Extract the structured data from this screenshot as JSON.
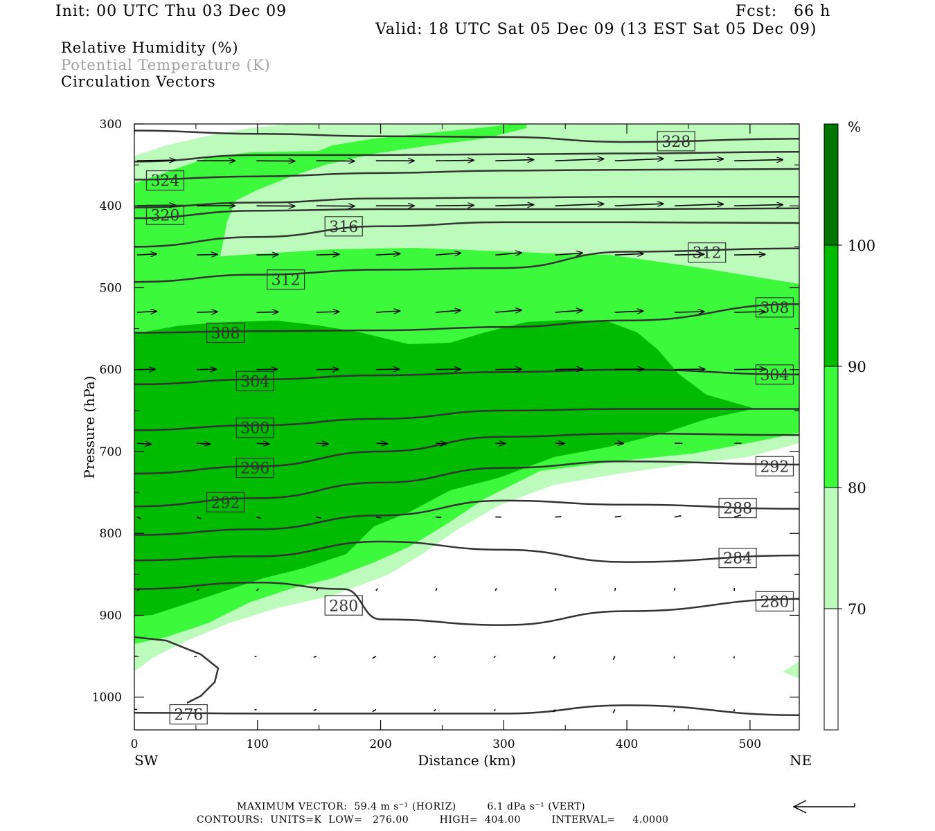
{
  "header": {
    "init": "Init: 00 UTC Thu 03 Dec 09",
    "fcst": "Fcst:   66 h",
    "valid": "Valid: 18 UTC Sat 05 Dec 09 (13 EST Sat 05 Dec 09)"
  },
  "legend": {
    "rh": "Relative Humidity (%)",
    "theta": "Potential Temperature (K)",
    "vectors": "Circulation Vectors"
  },
  "colors": {
    "rh70": "#bdfbbd",
    "rh80": "#3cf93c",
    "rh90": "#00bb00",
    "rh100": "#007500",
    "theta_line": "#333333",
    "theta_legend_text": "#a0a0a0"
  },
  "chart_data": {
    "type": "heatmap",
    "xlabel": "Distance (km)",
    "ylabel": "Pressure (hPa)",
    "xlim": [
      0,
      540
    ],
    "ylim": [
      1040,
      300
    ],
    "x_ticks": [
      "0",
      "100",
      "200",
      "300",
      "400",
      "500"
    ],
    "y_ticks": [
      "300",
      "400",
      "500",
      "600",
      "700",
      "800",
      "900",
      "1000"
    ],
    "x_start_label": "SW",
    "x_end_label": "NE",
    "colorbar": {
      "unit": "%",
      "levels": [
        "70",
        "80",
        "90",
        "100"
      ]
    },
    "theta_contours": [
      {
        "label": "328",
        "points": [
          [
            0,
            308
          ],
          [
            100,
            312
          ],
          [
            200,
            315
          ],
          [
            300,
            316
          ],
          [
            400,
            322
          ],
          [
            540,
            318
          ]
        ]
      },
      {
        "label": "324",
        "points": [
          [
            0,
            346
          ],
          [
            100,
            338
          ],
          [
            200,
            338
          ],
          [
            300,
            337
          ],
          [
            400,
            336
          ],
          [
            540,
            334
          ]
        ]
      },
      {
        "label": "324",
        "points": [
          [
            0,
            368
          ],
          [
            100,
            364
          ],
          [
            200,
            360
          ],
          [
            300,
            357
          ],
          [
            400,
            356
          ],
          [
            540,
            355
          ]
        ]
      },
      {
        "label": "320",
        "points": [
          [
            0,
            402
          ],
          [
            100,
            396
          ],
          [
            200,
            391
          ],
          [
            300,
            390
          ],
          [
            400,
            389
          ],
          [
            540,
            389
          ]
        ]
      },
      {
        "label": "320",
        "points": [
          [
            0,
            415
          ],
          [
            100,
            406
          ],
          [
            200,
            404
          ],
          [
            300,
            404
          ],
          [
            400,
            404
          ],
          [
            540,
            403
          ]
        ]
      },
      {
        "label": "316",
        "points": [
          [
            0,
            450
          ],
          [
            100,
            438
          ],
          [
            200,
            425
          ],
          [
            300,
            420
          ],
          [
            400,
            420
          ],
          [
            540,
            421
          ]
        ]
      },
      {
        "label": "312",
        "points": [
          [
            0,
            493
          ],
          [
            100,
            484
          ],
          [
            200,
            478
          ],
          [
            300,
            476
          ],
          [
            400,
            456
          ],
          [
            540,
            452
          ]
        ]
      },
      {
        "label": "308",
        "points": [
          [
            0,
            555
          ],
          [
            100,
            553
          ],
          [
            200,
            552
          ],
          [
            300,
            548
          ],
          [
            400,
            540
          ],
          [
            540,
            520
          ]
        ]
      },
      {
        "label": "304",
        "points": [
          [
            0,
            618
          ],
          [
            100,
            612
          ],
          [
            200,
            607
          ],
          [
            300,
            603
          ],
          [
            400,
            600
          ],
          [
            540,
            606
          ]
        ]
      },
      {
        "label": "300",
        "points": [
          [
            0,
            674
          ],
          [
            100,
            668
          ],
          [
            200,
            660
          ],
          [
            300,
            650
          ],
          [
            400,
            648
          ],
          [
            540,
            648
          ]
        ]
      },
      {
        "label": "296",
        "points": [
          [
            0,
            727
          ],
          [
            100,
            718
          ],
          [
            200,
            700
          ],
          [
            300,
            682
          ],
          [
            400,
            678
          ],
          [
            540,
            680
          ]
        ]
      },
      {
        "label": "292",
        "points": [
          [
            0,
            767
          ],
          [
            100,
            757
          ],
          [
            200,
            738
          ],
          [
            300,
            720
          ],
          [
            400,
            712
          ],
          [
            540,
            716
          ]
        ]
      },
      {
        "label": "288",
        "points": [
          [
            0,
            802
          ],
          [
            100,
            795
          ],
          [
            200,
            778
          ],
          [
            300,
            760
          ],
          [
            400,
            765
          ],
          [
            540,
            770
          ]
        ]
      },
      {
        "label": "284",
        "points": [
          [
            0,
            833
          ],
          [
            100,
            828
          ],
          [
            200,
            810
          ],
          [
            300,
            820
          ],
          [
            400,
            835
          ],
          [
            540,
            827
          ]
        ]
      },
      {
        "label": "280",
        "points": [
          [
            0,
            868
          ],
          [
            100,
            860
          ],
          [
            170,
            868
          ],
          [
            200,
            905
          ],
          [
            300,
            912
          ],
          [
            400,
            895
          ],
          [
            540,
            880
          ]
        ]
      },
      {
        "label": "276",
        "points": [
          [
            0,
            1019
          ],
          [
            100,
            1020
          ],
          [
            200,
            1020
          ],
          [
            300,
            1020
          ],
          [
            400,
            1010
          ],
          [
            540,
            1022
          ]
        ]
      }
    ],
    "contour_labels": [
      {
        "value": "328",
        "x": 440,
        "p": 321
      },
      {
        "value": "324",
        "x": 25,
        "p": 369
      },
      {
        "value": "320",
        "x": 25,
        "p": 411
      },
      {
        "value": "316",
        "x": 170,
        "p": 425
      },
      {
        "value": "312",
        "x": 465,
        "p": 457
      },
      {
        "value": "312",
        "x": 123,
        "p": 490
      },
      {
        "value": "308",
        "x": 520,
        "p": 524
      },
      {
        "value": "308",
        "x": 74,
        "p": 555
      },
      {
        "value": "304",
        "x": 98,
        "p": 614
      },
      {
        "value": "304",
        "x": 520,
        "p": 606
      },
      {
        "value": "300",
        "x": 98,
        "p": 671
      },
      {
        "value": "296",
        "x": 98,
        "p": 720
      },
      {
        "value": "292",
        "x": 74,
        "p": 762
      },
      {
        "value": "292",
        "x": 520,
        "p": 718
      },
      {
        "value": "288",
        "x": 490,
        "p": 769
      },
      {
        "value": "284",
        "x": 490,
        "p": 830
      },
      {
        "value": "280",
        "x": 170,
        "p": 888
      },
      {
        "value": "280",
        "x": 520,
        "p": 883
      },
      {
        "value": "276",
        "x": 44,
        "p": 1021
      }
    ],
    "vector_rows_hpa": [
      345,
      400,
      460,
      530,
      600,
      690,
      780,
      870,
      950,
      1015
    ]
  },
  "footer": {
    "max_vector": "MAXIMUM VECTOR:  59.4 m s⁻¹ (HORIZ)         6.1 dPa s⁻¹ (VERT)",
    "contours": "CONTOURS:  UNITS=K  LOW=   276.00         HIGH=  404.00         INTERVAL=     4.0000"
  }
}
